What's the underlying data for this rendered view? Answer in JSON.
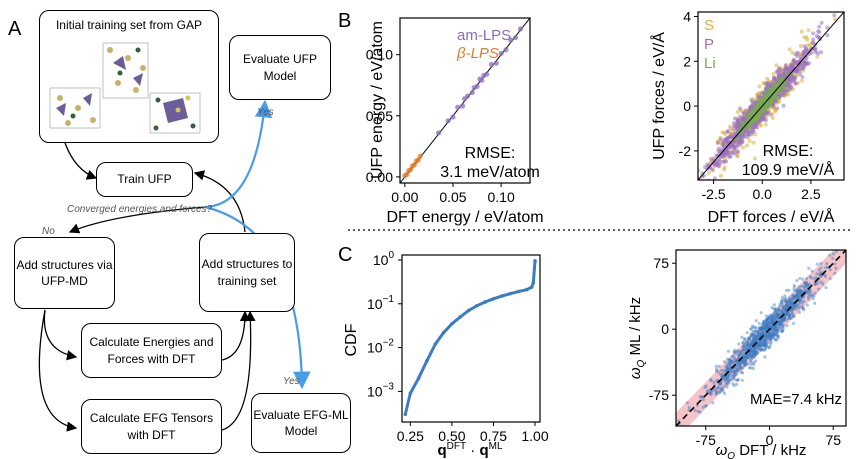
{
  "panel_letters": {
    "a": "A",
    "b": "B",
    "c": "C"
  },
  "colors": {
    "am_lps": "#8c6bbd",
    "beta_lps": "#e07b2a",
    "s": "#d9b13a",
    "p": "#9b6fc0",
    "li": "#7aaa55",
    "blue": "#3b7dc4",
    "arrow_blue": "#4a9be8",
    "band": "#f2b0b5"
  },
  "workflow": {
    "initial_title": "Initial training set from GAP",
    "evaluate_ufp": "Evaluate UFP Model",
    "train_ufp": "Train UFP",
    "converged": "Converged energies and forces?",
    "no": "No",
    "yes_top": "Yes",
    "yes_bottom": "Yes",
    "add_ufp_md": "Add structures via UFP-MD",
    "add_training": "Add structures to training set",
    "calc_energies": "Calculate Energies and Forces with DFT",
    "calc_efg": "Calculate EFG Tensors with DFT",
    "evaluate_efg": "Evaluate EFG-ML Model"
  },
  "chart_data": [
    {
      "type": "scatter",
      "xlabel": "DFT energy / eV/atom",
      "ylabel": "UFP energy / eV/atom",
      "xlim": [
        -0.005,
        0.13
      ],
      "ylim": [
        -0.005,
        0.13
      ],
      "xticks": [
        "0.00",
        "0.05",
        "0.10"
      ],
      "yticks": [
        "0.00",
        "0.05",
        "0.10"
      ],
      "legend": [
        "am-LPS",
        "β-LPS"
      ],
      "annotation": [
        "RMSE:",
        "3.1 meV/atom"
      ],
      "series": [
        {
          "name": "am-LPS",
          "x": [
            0.035,
            0.045,
            0.05,
            0.055,
            0.06,
            0.062,
            0.065,
            0.07,
            0.072,
            0.075,
            0.078,
            0.08,
            0.082,
            0.085,
            0.09,
            0.095,
            0.1,
            0.105,
            0.11,
            0.115,
            0.12
          ],
          "y": [
            0.036,
            0.046,
            0.049,
            0.057,
            0.058,
            0.064,
            0.066,
            0.069,
            0.073,
            0.074,
            0.08,
            0.079,
            0.083,
            0.084,
            0.092,
            0.093,
            0.101,
            0.104,
            0.112,
            0.114,
            0.121
          ]
        },
        {
          "name": "β-LPS",
          "x": [
            0.0,
            0.002,
            0.004,
            0.006,
            0.008,
            0.01,
            0.012,
            0.014,
            0.016
          ],
          "y": [
            0.001,
            0.002,
            0.005,
            0.006,
            0.009,
            0.01,
            0.013,
            0.014,
            0.017
          ]
        }
      ]
    },
    {
      "type": "scatter",
      "xlabel": "DFT forces / eV/Å",
      "ylabel": "UFP forces / eV/Å",
      "xlim": [
        -3.3,
        4.2
      ],
      "ylim": [
        -3.3,
        4.2
      ],
      "xticks": [
        "-2.5",
        "0.0",
        "2.5"
      ],
      "yticks": [
        "-2",
        "0",
        "2",
        "4"
      ],
      "legend": [
        "S",
        "P",
        "Li"
      ],
      "annotation": [
        "RMSE:",
        "109.9 meV/Å"
      ]
    },
    {
      "type": "line",
      "xlabel": "q^DFT · q^ML",
      "ylabel": "CDF",
      "scale": "log-y",
      "xlim": [
        0.2,
        1.03
      ],
      "ylim": [
        0.0002,
        1.3
      ],
      "xticks": [
        "0.25",
        "0.50",
        "0.75",
        "1.00"
      ],
      "yticks": [
        "10^-3",
        "10^-2",
        "10^-1",
        "10^0"
      ],
      "x": [
        0.22,
        0.25,
        0.3,
        0.35,
        0.4,
        0.45,
        0.5,
        0.55,
        0.6,
        0.65,
        0.7,
        0.75,
        0.8,
        0.85,
        0.9,
        0.95,
        0.98,
        0.99,
        1.0
      ],
      "y": [
        0.0003,
        0.0009,
        0.002,
        0.005,
        0.012,
        0.022,
        0.035,
        0.05,
        0.07,
        0.09,
        0.11,
        0.13,
        0.15,
        0.17,
        0.19,
        0.21,
        0.24,
        0.3,
        0.95
      ]
    },
    {
      "type": "scatter",
      "xlabel": "ωQ DFT / kHz",
      "ylabel": "ωQ ML / kHz",
      "xlim": [
        -110,
        90
      ],
      "ylim": [
        -110,
        90
      ],
      "xticks": [
        "-75",
        "0",
        "75"
      ],
      "yticks": [
        "-75",
        "0",
        "75"
      ],
      "annotation": "MAE=7.4 kHz"
    }
  ]
}
